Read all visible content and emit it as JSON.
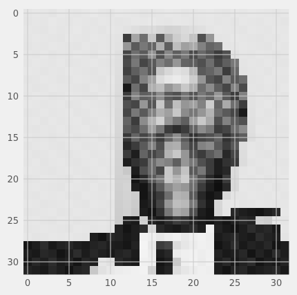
{
  "chart_data": {
    "type": "heatmap",
    "colormap": "gray",
    "rows": 32,
    "cols": 32,
    "xlim": [
      -0.5,
      31.5
    ],
    "ylim": [
      31.5,
      -0.5
    ],
    "x_ticks": [
      0,
      5,
      10,
      15,
      20,
      25,
      30
    ],
    "y_ticks": [
      0,
      5,
      10,
      15,
      20,
      25,
      30
    ],
    "x_tick_labels": [
      "0",
      "5",
      "10",
      "15",
      "20",
      "25",
      "30"
    ],
    "y_tick_labels": [
      "0",
      "5",
      "10",
      "15",
      "20",
      "25",
      "30"
    ],
    "grid": true,
    "style": "fivethirtyeight",
    "colors": {
      "figure_background": "#f0f0f0",
      "grid": "#cbcbcb",
      "tick_text": "#555555"
    },
    "values": [
      [
        229,
        231,
        230,
        228,
        232,
        230,
        229,
        231,
        233,
        230,
        229,
        232,
        231,
        230,
        228,
        229,
        230,
        232,
        231,
        229,
        230,
        231,
        232,
        230,
        229,
        231,
        230,
        232,
        231,
        230,
        229,
        231
      ],
      [
        228,
        230,
        229,
        232,
        230,
        229,
        231,
        230,
        229,
        231,
        230,
        228,
        229,
        231,
        230,
        232,
        230,
        229,
        231,
        230,
        229,
        230,
        231,
        229,
        230,
        228,
        231,
        230,
        229,
        231,
        230,
        228
      ],
      [
        230,
        229,
        228,
        231,
        229,
        230,
        232,
        229,
        230,
        228,
        231,
        229,
        226,
        222,
        218,
        220,
        215,
        210,
        212,
        218,
        222,
        224,
        229,
        231,
        230,
        229,
        228,
        231,
        230,
        229,
        231,
        230
      ],
      [
        229,
        231,
        230,
        229,
        228,
        231,
        230,
        229,
        231,
        230,
        229,
        227,
        60,
        165,
        110,
        200,
        90,
        175,
        205,
        215,
        195,
        80,
        150,
        228,
        229,
        231,
        230,
        229,
        228,
        230,
        229,
        231
      ],
      [
        228,
        230,
        229,
        231,
        230,
        229,
        228,
        231,
        229,
        230,
        229,
        226,
        150,
        90,
        120,
        100,
        175,
        95,
        190,
        160,
        170,
        130,
        100,
        110,
        228,
        229,
        231,
        230,
        229,
        228,
        231,
        229
      ],
      [
        230,
        229,
        231,
        228,
        230,
        229,
        231,
        230,
        228,
        231,
        230,
        224,
        70,
        110,
        90,
        145,
        80,
        135,
        95,
        120,
        75,
        105,
        85,
        60,
        80,
        226,
        230,
        229,
        231,
        230,
        228,
        230
      ],
      [
        229,
        231,
        230,
        229,
        231,
        228,
        229,
        230,
        231,
        229,
        228,
        223,
        75,
        120,
        70,
        90,
        130,
        110,
        150,
        100,
        95,
        80,
        110,
        70,
        95,
        120,
        228,
        230,
        229,
        231,
        229,
        228
      ],
      [
        231,
        230,
        228,
        230,
        229,
        231,
        230,
        229,
        228,
        230,
        229,
        222,
        65,
        95,
        115,
        85,
        200,
        215,
        225,
        220,
        185,
        90,
        100,
        120,
        60,
        105,
        227,
        229,
        230,
        228,
        231,
        230
      ],
      [
        228,
        229,
        231,
        230,
        228,
        229,
        231,
        230,
        229,
        228,
        231,
        221,
        90,
        70,
        130,
        160,
        220,
        230,
        235,
        228,
        205,
        150,
        85,
        70,
        130,
        90,
        110,
        228,
        229,
        231,
        230,
        229
      ],
      [
        230,
        228,
        229,
        231,
        230,
        230,
        229,
        228,
        231,
        229,
        230,
        220,
        25,
        110,
        70,
        175,
        190,
        150,
        170,
        200,
        175,
        110,
        140,
        95,
        70,
        130,
        75,
        229,
        228,
        230,
        229,
        231
      ],
      [
        229,
        231,
        230,
        228,
        229,
        231,
        230,
        229,
        228,
        231,
        229,
        219,
        60,
        130,
        95,
        100,
        140,
        90,
        80,
        115,
        85,
        120,
        100,
        150,
        90,
        60,
        130,
        227,
        230,
        229,
        231,
        228
      ],
      [
        231,
        230,
        229,
        230,
        231,
        228,
        229,
        231,
        230,
        229,
        228,
        218,
        80,
        70,
        150,
        85,
        200,
        110,
        190,
        150,
        160,
        130,
        205,
        100,
        170,
        110,
        60,
        226,
        229,
        231,
        228,
        230
      ],
      [
        228,
        229,
        231,
        229,
        230,
        231,
        228,
        229,
        231,
        230,
        229,
        217,
        70,
        120,
        90,
        130,
        175,
        160,
        200,
        140,
        120,
        150,
        180,
        110,
        90,
        70,
        25,
        225,
        230,
        228,
        229,
        231
      ],
      [
        230,
        231,
        228,
        231,
        229,
        230,
        231,
        228,
        229,
        231,
        230,
        216,
        100,
        60,
        140,
        180,
        210,
        150,
        120,
        95,
        160,
        200,
        170,
        80,
        130,
        95,
        80,
        224,
        228,
        229,
        231,
        230
      ],
      [
        229,
        228,
        230,
        229,
        231,
        229,
        230,
        231,
        228,
        229,
        231,
        215,
        90,
        75,
        110,
        160,
        120,
        60,
        45,
        60,
        100,
        140,
        120,
        60,
        70,
        110,
        140,
        223,
        231,
        230,
        229,
        228
      ],
      [
        231,
        229,
        230,
        228,
        230,
        231,
        229,
        230,
        231,
        228,
        229,
        214,
        55,
        100,
        70,
        95,
        60,
        100,
        140,
        90,
        50,
        70,
        80,
        100,
        50,
        75,
        95,
        222,
        229,
        231,
        230,
        229
      ],
      [
        228,
        230,
        231,
        229,
        228,
        230,
        231,
        229,
        230,
        231,
        228,
        213,
        40,
        60,
        90,
        130,
        80,
        170,
        175,
        110,
        70,
        130,
        140,
        90,
        60,
        90,
        222,
        230,
        228,
        231,
        229,
        230
      ],
      [
        230,
        228,
        229,
        231,
        229,
        228,
        230,
        231,
        229,
        230,
        231,
        212,
        60,
        30,
        100,
        70,
        90,
        180,
        200,
        150,
        80,
        60,
        90,
        110,
        40,
        70,
        221,
        231,
        229,
        228,
        230,
        231
      ],
      [
        229,
        231,
        228,
        230,
        231,
        229,
        228,
        230,
        231,
        229,
        230,
        211,
        30,
        50,
        60,
        110,
        140,
        130,
        95,
        150,
        120,
        80,
        60,
        30,
        50,
        60,
        220,
        228,
        230,
        231,
        229,
        228
      ],
      [
        231,
        230,
        229,
        228,
        230,
        231,
        229,
        228,
        230,
        231,
        229,
        210,
        200,
        30,
        80,
        110,
        70,
        200,
        150,
        195,
        90,
        120,
        60,
        30,
        40,
        219,
        229,
        231,
        228,
        230,
        231,
        229
      ],
      [
        228,
        229,
        231,
        230,
        229,
        228,
        231,
        229,
        228,
        230,
        231,
        209,
        210,
        20,
        40,
        90,
        120,
        200,
        180,
        205,
        120,
        80,
        40,
        20,
        60,
        218,
        230,
        229,
        231,
        228,
        230,
        231
      ],
      [
        230,
        231,
        230,
        229,
        228,
        231,
        230,
        229,
        231,
        228,
        230,
        208,
        212,
        30,
        20,
        50,
        90,
        140,
        160,
        150,
        110,
        60,
        30,
        15,
        40,
        217,
        231,
        230,
        229,
        231,
        228,
        230
      ],
      [
        229,
        228,
        231,
        230,
        231,
        229,
        228,
        231,
        230,
        229,
        231,
        207,
        211,
        205,
        20,
        40,
        60,
        110,
        180,
        175,
        90,
        40,
        20,
        30,
        216,
        228,
        229,
        231,
        230,
        229,
        231,
        228
      ],
      [
        231,
        230,
        228,
        229,
        230,
        231,
        229,
        228,
        231,
        230,
        229,
        206,
        210,
        203,
        25,
        35,
        70,
        150,
        190,
        185,
        120,
        50,
        25,
        215,
        230,
        231,
        228,
        229,
        231,
        230,
        229,
        230
      ],
      [
        228,
        229,
        230,
        231,
        228,
        229,
        231,
        230,
        229,
        228,
        230,
        205,
        209,
        200,
        30,
        20,
        50,
        120,
        170,
        160,
        80,
        30,
        20,
        214,
        229,
        40,
        30,
        25,
        20,
        30,
        40,
        231
      ],
      [
        230,
        231,
        229,
        228,
        231,
        230,
        228,
        229,
        230,
        231,
        229,
        204,
        30,
        25,
        210,
        35,
        25,
        40,
        60,
        50,
        35,
        25,
        20,
        30,
        20,
        30,
        40,
        35,
        210,
        205,
        230,
        229
      ],
      [
        229,
        230,
        231,
        230,
        229,
        228,
        231,
        230,
        229,
        230,
        228,
        35,
        20,
        30,
        45,
        215,
        40,
        30,
        25,
        35,
        45,
        30,
        240,
        35,
        25,
        20,
        30,
        45,
        35,
        40,
        25,
        230
      ],
      [
        231,
        228,
        229,
        231,
        230,
        231,
        229,
        228,
        30,
        20,
        40,
        35,
        25,
        30,
        242,
        238,
        230,
        236,
        240,
        232,
        238,
        241,
        237,
        28,
        35,
        40,
        30,
        25,
        45,
        35,
        30,
        228
      ],
      [
        20,
        30,
        45,
        25,
        35,
        40,
        30,
        25,
        35,
        40,
        30,
        28,
        22,
        35,
        244,
        232,
        60,
        70,
        220,
        230,
        236,
        240,
        238,
        20,
        30,
        45,
        25,
        35,
        30,
        40,
        20,
        30
      ],
      [
        30,
        25,
        40,
        35,
        20,
        30,
        45,
        28,
        40,
        32,
        25,
        35,
        40,
        28,
        243,
        236,
        30,
        40,
        235,
        239,
        241,
        237,
        240,
        35,
        25,
        30,
        40,
        20,
        35,
        25,
        45,
        30
      ],
      [
        25,
        40,
        30,
        45,
        28,
        35,
        20,
        38,
        30,
        230,
        225,
        40,
        30,
        25,
        240,
        238,
        20,
        30,
        200,
        238,
        242,
        236,
        241,
        30,
        40,
        25,
        35,
        45,
        20,
        30,
        25,
        35
      ],
      [
        35,
        30,
        25,
        40,
        30,
        20,
        35,
        40,
        200,
        225,
        232,
        236,
        238,
        240,
        242,
        210,
        25,
        35,
        220,
        230,
        236,
        240,
        238,
        30,
        20,
        35,
        40,
        25,
        30,
        35,
        40,
        25
      ]
    ]
  }
}
